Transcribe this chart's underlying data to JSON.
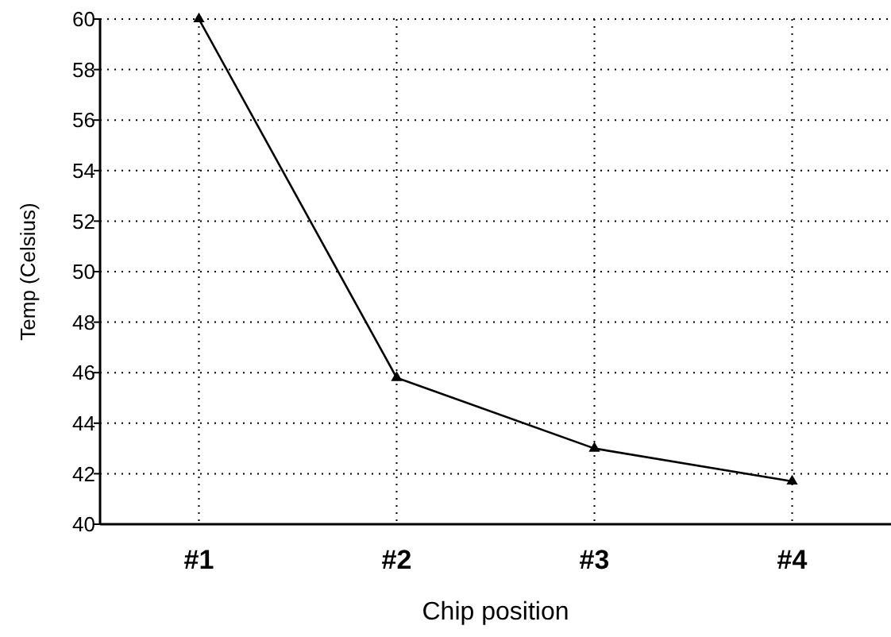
{
  "chart_data": {
    "type": "line",
    "xlabel": "Chip position",
    "ylabel": "Temp (Celsius)",
    "categories": [
      "#1",
      "#2",
      "#3",
      "#4"
    ],
    "series": [
      {
        "color": "#000000",
        "values": [
          60,
          45.8,
          43.0,
          41.7
        ]
      }
    ],
    "ylim": [
      40,
      60
    ],
    "yticks": [
      40,
      42,
      44,
      46,
      48,
      50,
      52,
      54,
      56,
      58,
      60
    ],
    "grid": true,
    "marker": "triangle",
    "line_style": "solid"
  }
}
